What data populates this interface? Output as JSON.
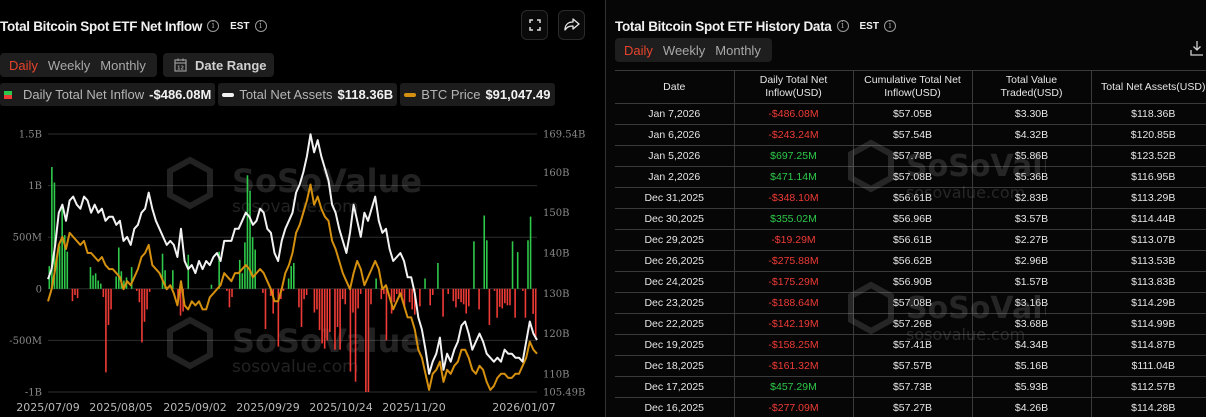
{
  "left": {
    "title": "Total Bitcoin Spot ETF Net Inflow",
    "timezone": "EST",
    "tabs": [
      {
        "label": "Daily",
        "active": true
      },
      {
        "label": "Weekly",
        "active": false
      },
      {
        "label": "Monthly",
        "active": false
      }
    ],
    "date_range_label": "Date Range",
    "icons": {
      "fullscreen": "fullscreen-icon",
      "share": "share-icon",
      "calendar": "calendar-icon",
      "info": "info-icon"
    },
    "legend": [
      {
        "label": "Daily Total Net Inflow",
        "value": "-$486.08M"
      },
      {
        "label": "Total Net Assets",
        "value": "$118.36B"
      },
      {
        "label": "BTC Price",
        "value": "$91,047.49"
      }
    ],
    "watermark": {
      "brand": "SoSoValue",
      "url": "sosovalue.com"
    }
  },
  "chart_data": {
    "type": "bar",
    "title": "Total Bitcoin Spot ETF Net Inflow",
    "xlabel": "",
    "ylabel": "",
    "x_ticks": [
      "2025/07/09",
      "2025/08/05",
      "2025/09/02",
      "2025/09/29",
      "2025/10/24",
      "2025/11/20",
      "2026/01/07"
    ],
    "y_left_ticks": [
      "1.5B",
      "1B",
      "500M",
      "0",
      "-500M",
      "-1B"
    ],
    "y_left_range": [
      -1000,
      1500
    ],
    "y_right_ticks": [
      "169.54B",
      "160B",
      "150B",
      "140B",
      "130B",
      "120B",
      "110B",
      "105.49B"
    ],
    "y_right_range": [
      105.49,
      169.54
    ],
    "grid": true,
    "legend_position": "top",
    "colors": {
      "positive": "#2ec84a",
      "negative": "#ef3b36",
      "net_assets": "#f2f2f2",
      "btc_price": "#d4900e"
    },
    "series": [
      {
        "name": "Daily Total Net Inflow",
        "unit": "M USD",
        "values": [
          220,
          1180,
          1030,
          290,
          420,
          800,
          520,
          360,
          0,
          -120,
          -60,
          -90,
          0,
          0,
          0,
          0,
          210,
          130,
          150,
          80,
          50,
          -80,
          -810,
          -350,
          -200,
          0,
          120,
          400,
          170,
          80,
          110,
          0,
          210,
          0,
          -20,
          -130,
          -520,
          -320,
          -200,
          -30,
          0,
          0,
          0,
          0,
          340,
          180,
          0,
          0,
          180,
          0,
          -110,
          -260,
          -220,
          0,
          330,
          0,
          0,
          0,
          0,
          0,
          0,
          0,
          0,
          40,
          0,
          0,
          360,
          0,
          0,
          -20,
          -180,
          -80,
          0,
          0,
          280,
          150,
          450,
          1100,
          950,
          500,
          380,
          0,
          0,
          -40,
          -390,
          0,
          -70,
          -240,
          0,
          -560,
          -100,
          -20,
          0,
          100,
          220,
          250,
          0,
          -180,
          -370,
          -100,
          -60,
          0,
          0,
          -230,
          -200,
          -400,
          -530,
          -580,
          -500,
          -420,
          0,
          -590,
          -370,
          -590,
          -100,
          -150,
          0,
          -800,
          -230,
          -900,
          -190,
          -50,
          0,
          -1000,
          -1000,
          -150,
          0,
          100,
          0,
          -100,
          -50,
          -500,
          0,
          -240,
          -130,
          -50,
          -60,
          -80,
          -190,
          0,
          -130,
          -200,
          -250,
          0,
          -170,
          0,
          100,
          0,
          -160,
          -60,
          0,
          250,
          0,
          -270,
          0,
          -50,
          0,
          -120,
          -180,
          -100,
          -130,
          -150,
          -240,
          -170,
          0,
          460,
          0,
          -200,
          0,
          710,
          470,
          -350,
          0,
          -20,
          -280,
          -175,
          -190,
          -140,
          -160,
          -160,
          460,
          -280,
          355,
          0,
          -20,
          -280,
          470,
          700,
          -243,
          -486
        ]
      },
      {
        "name": "Total Net Assets",
        "unit": "B USD",
        "values": [
          133.5,
          136,
          142,
          150,
          152,
          148,
          153,
          154,
          152,
          151,
          154,
          153,
          150,
          152,
          150,
          151,
          148,
          149,
          149,
          147,
          148,
          143,
          144,
          142,
          146,
          147,
          150,
          151,
          155,
          151,
          148,
          146,
          144,
          142,
          143,
          142,
          139,
          146,
          138,
          136,
          137,
          135,
          138,
          136,
          138,
          137,
          139,
          140,
          138,
          143,
          143,
          143,
          146,
          146,
          148,
          150,
          149,
          147,
          148,
          151,
          150,
          146,
          145,
          140,
          138,
          143,
          146,
          148,
          150,
          155,
          157,
          160,
          164,
          169.5,
          165,
          168,
          164,
          161,
          158,
          152,
          150,
          146,
          143,
          140,
          145,
          152,
          148,
          144,
          150,
          148,
          151,
          154,
          148,
          145,
          146,
          141,
          138,
          139,
          140,
          138,
          134,
          134,
          130,
          124,
          121,
          116,
          110,
          113,
          115,
          119,
          111,
          115,
          113,
          116,
          118,
          122,
          123,
          120,
          116,
          118,
          120,
          118,
          115,
          114,
          113,
          114,
          113,
          116,
          115,
          115,
          114,
          114,
          113,
          118,
          123,
          120,
          118.4
        ]
      },
      {
        "name": "BTC Price",
        "unit": "USD (scaled to right axis)",
        "values": [
          128,
          131,
          136,
          142,
          144,
          141,
          145,
          144,
          143,
          142,
          143,
          140,
          140,
          139,
          138,
          139,
          137,
          136,
          136,
          135,
          134,
          131,
          133,
          132,
          134,
          136,
          139,
          140,
          142,
          137,
          136,
          135,
          133,
          131,
          132,
          130,
          127,
          133,
          127,
          126,
          128,
          127,
          128,
          126,
          126,
          129,
          130,
          131,
          132,
          135,
          134,
          133,
          135,
          135,
          136,
          137,
          136,
          134,
          135,
          136,
          135,
          133,
          131,
          128,
          128,
          131,
          135,
          137,
          140,
          145,
          147,
          150,
          153,
          157,
          152,
          154,
          151,
          149,
          148,
          143,
          141,
          138,
          135,
          133,
          131,
          135,
          138,
          136,
          132,
          134,
          136,
          138,
          136,
          131,
          132,
          129,
          126,
          128,
          130,
          127,
          124,
          124,
          121,
          116,
          114,
          110,
          106,
          110,
          111,
          113,
          108,
          111,
          110,
          112,
          113,
          116,
          116,
          114,
          111,
          110,
          112,
          111,
          108,
          106,
          107,
          109,
          110,
          110,
          109,
          109,
          110,
          110,
          112,
          114,
          118,
          116,
          115
        ]
      }
    ]
  },
  "right": {
    "title": "Total Bitcoin Spot ETF History Data",
    "timezone": "EST",
    "tabs": [
      {
        "label": "Daily",
        "active": true
      },
      {
        "label": "Weekly",
        "active": false
      },
      {
        "label": "Monthly",
        "active": false
      }
    ],
    "download_icon": "download-icon",
    "columns": [
      "Date",
      "Daily Total Net Inflow(USD)",
      "Cumulative Total Net Inflow(USD)",
      "Total Value Traded(USD)",
      "Total Net Assets(USD)"
    ],
    "rows": [
      {
        "date": "Jan 7,2026",
        "daily": "-$486.08M",
        "cumulative": "$57.05B",
        "traded": "$3.30B",
        "assets": "$118.36B"
      },
      {
        "date": "Jan 6,2026",
        "daily": "-$243.24M",
        "cumulative": "$57.54B",
        "traded": "$4.32B",
        "assets": "$120.85B"
      },
      {
        "date": "Jan 5,2026",
        "daily": "$697.25M",
        "cumulative": "$57.78B",
        "traded": "$5.86B",
        "assets": "$123.52B"
      },
      {
        "date": "Jan 2,2026",
        "daily": "$471.14M",
        "cumulative": "$57.08B",
        "traded": "$5.36B",
        "assets": "$116.95B"
      },
      {
        "date": "Dec 31,2025",
        "daily": "-$348.10M",
        "cumulative": "$56.61B",
        "traded": "$2.83B",
        "assets": "$113.29B"
      },
      {
        "date": "Dec 30,2025",
        "daily": "$355.02M",
        "cumulative": "$56.96B",
        "traded": "$3.57B",
        "assets": "$114.44B"
      },
      {
        "date": "Dec 29,2025",
        "daily": "-$19.29M",
        "cumulative": "$56.61B",
        "traded": "$2.27B",
        "assets": "$113.07B"
      },
      {
        "date": "Dec 26,2025",
        "daily": "-$275.88M",
        "cumulative": "$56.62B",
        "traded": "$2.96B",
        "assets": "$113.53B"
      },
      {
        "date": "Dec 24,2025",
        "daily": "-$175.29M",
        "cumulative": "$56.90B",
        "traded": "$1.57B",
        "assets": "$113.83B"
      },
      {
        "date": "Dec 23,2025",
        "daily": "-$188.64M",
        "cumulative": "$57.08B",
        "traded": "$3.16B",
        "assets": "$114.29B"
      },
      {
        "date": "Dec 22,2025",
        "daily": "-$142.19M",
        "cumulative": "$57.26B",
        "traded": "$3.68B",
        "assets": "$114.99B"
      },
      {
        "date": "Dec 19,2025",
        "daily": "-$158.25M",
        "cumulative": "$57.41B",
        "traded": "$4.34B",
        "assets": "$114.87B"
      },
      {
        "date": "Dec 18,2025",
        "daily": "-$161.32M",
        "cumulative": "$57.57B",
        "traded": "$5.16B",
        "assets": "$111.04B"
      },
      {
        "date": "Dec 17,2025",
        "daily": "$457.29M",
        "cumulative": "$57.73B",
        "traded": "$5.93B",
        "assets": "$112.57B"
      },
      {
        "date": "Dec 16,2025",
        "daily": "-$277.09M",
        "cumulative": "$57.27B",
        "traded": "$4.26B",
        "assets": "$114.28B"
      }
    ]
  }
}
